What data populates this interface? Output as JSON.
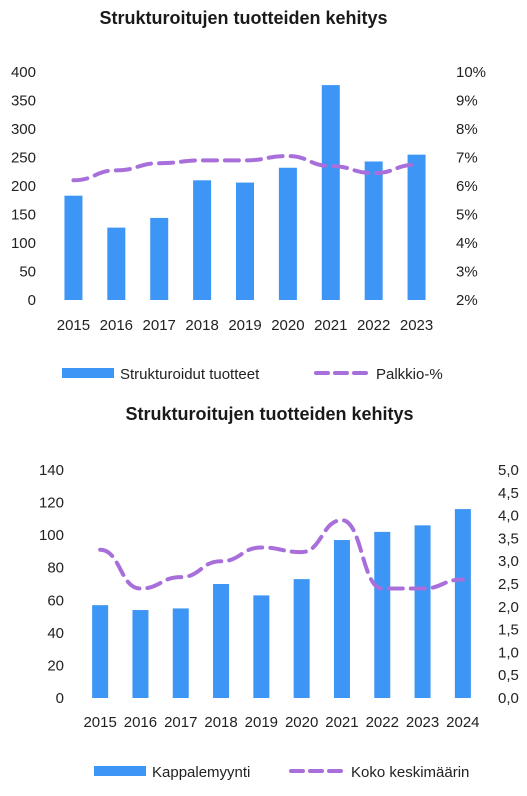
{
  "chart_data": [
    {
      "type": "bar",
      "title": "Strukturoitujen tuotteiden kehitys",
      "categories": [
        "2015",
        "2016",
        "2017",
        "2018",
        "2019",
        "2020",
        "2021",
        "2022",
        "2023"
      ],
      "series": [
        {
          "name": "Strukturoidut tuotteet",
          "type": "bar",
          "axis": "left",
          "color": "#3d95f5",
          "values": [
            183,
            127,
            144,
            210,
            206,
            232,
            377,
            243,
            255
          ]
        },
        {
          "name": "Palkkio-%",
          "type": "line",
          "style": "dashed",
          "axis": "right",
          "color": "#a86fdb",
          "values": [
            6.2,
            6.55,
            6.8,
            6.9,
            6.9,
            7.05,
            6.7,
            6.45,
            6.75
          ]
        }
      ],
      "y_left": {
        "min": 0,
        "max": 400,
        "ticks": [
          "0",
          "50",
          "100",
          "150",
          "200",
          "250",
          "300",
          "350",
          "400"
        ]
      },
      "y_right": {
        "min": 2,
        "max": 10,
        "ticks": [
          "2%",
          "3%",
          "4%",
          "5%",
          "6%",
          "7%",
          "8%",
          "9%",
          "10%"
        ]
      },
      "legend_position": "bottom",
      "grid": false
    },
    {
      "type": "bar",
      "title": "Strukturoitujen tuotteiden kehitys",
      "categories": [
        "2015",
        "2016",
        "2017",
        "2018",
        "2019",
        "2020",
        "2021",
        "2022",
        "2023",
        "2024"
      ],
      "series": [
        {
          "name": "Kappalemyynti",
          "type": "bar",
          "axis": "left",
          "color": "#3d95f5",
          "values": [
            57,
            54,
            55,
            70,
            63,
            73,
            97,
            102,
            106,
            116
          ]
        },
        {
          "name": "Koko keskimäärin",
          "type": "line",
          "style": "dashed",
          "axis": "right",
          "color": "#a86fdb",
          "values": [
            3.25,
            2.4,
            2.65,
            3.0,
            3.3,
            3.2,
            3.9,
            2.4,
            2.4,
            2.6
          ]
        }
      ],
      "y_left": {
        "min": 0,
        "max": 140,
        "ticks": [
          "0",
          "20",
          "40",
          "60",
          "80",
          "100",
          "120",
          "140"
        ]
      },
      "y_right": {
        "min": 0,
        "max": 5,
        "ticks": [
          "0,0",
          "0,5",
          "1,0",
          "1,5",
          "2,0",
          "2,5",
          "3,0",
          "3,5",
          "4,0",
          "4,5",
          "5,0"
        ]
      },
      "legend_position": "bottom",
      "grid": false
    }
  ]
}
